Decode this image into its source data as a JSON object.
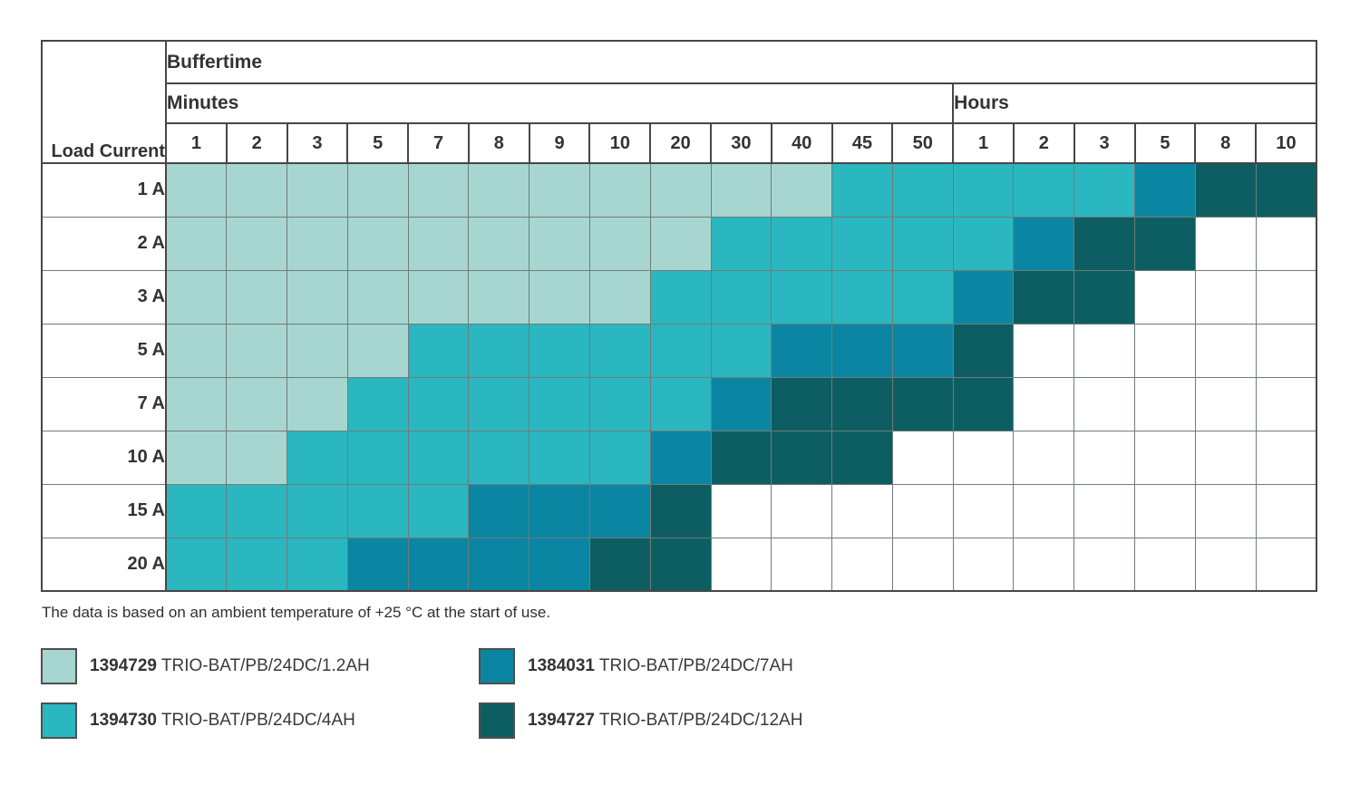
{
  "chart_data": {
    "type": "heatmap",
    "title": "Buffertime",
    "row_label_header": "Load Current",
    "col_groups": [
      {
        "label": "Minutes",
        "cols": 13
      },
      {
        "label": "Hours",
        "cols": 6
      }
    ],
    "columns": [
      "1",
      "2",
      "3",
      "5",
      "7",
      "8",
      "9",
      "10",
      "20",
      "30",
      "40",
      "45",
      "50",
      "1",
      "2",
      "3",
      "5",
      "8",
      "10"
    ],
    "rows": [
      "1 A",
      "2 A",
      "3 A",
      "5 A",
      "7 A",
      "10 A",
      "15 A",
      "20 A"
    ],
    "legend": [
      {
        "key": "L",
        "code": "1394729",
        "name": "TRIO-BAT/PB/24DC/1.2AH",
        "color": "#a7d6d1"
      },
      {
        "key": "B",
        "code": "1384031",
        "name": "TRIO-BAT/PB/24DC/7AH",
        "color": "#0b86a2"
      },
      {
        "key": "M",
        "code": "1394730",
        "name": "TRIO-BAT/PB/24DC/4AH",
        "color": "#2ab7bf"
      },
      {
        "key": "D",
        "code": "1394727",
        "name": "TRIO-BAT/PB/24DC/12AH",
        "color": "#0d5e62"
      }
    ],
    "cells": [
      [
        "L",
        "L",
        "L",
        "L",
        "L",
        "L",
        "L",
        "L",
        "L",
        "L",
        "L",
        "M",
        "M",
        "M",
        "M",
        "M",
        "B",
        "D",
        "D"
      ],
      [
        "L",
        "L",
        "L",
        "L",
        "L",
        "L",
        "L",
        "L",
        "L",
        "M",
        "M",
        "M",
        "M",
        "M",
        "B",
        "D",
        "D",
        "",
        ""
      ],
      [
        "L",
        "L",
        "L",
        "L",
        "L",
        "L",
        "L",
        "L",
        "M",
        "M",
        "M",
        "M",
        "M",
        "B",
        "D",
        "D",
        "",
        "",
        ""
      ],
      [
        "L",
        "L",
        "L",
        "L",
        "M",
        "M",
        "M",
        "M",
        "M",
        "M",
        "B",
        "B",
        "B",
        "D",
        "",
        "",
        "",
        "",
        ""
      ],
      [
        "L",
        "L",
        "L",
        "M",
        "M",
        "M",
        "M",
        "M",
        "M",
        "B",
        "D",
        "D",
        "D",
        "D",
        "",
        "",
        "",
        "",
        ""
      ],
      [
        "L",
        "L",
        "M",
        "M",
        "M",
        "M",
        "M",
        "M",
        "B",
        "D",
        "D",
        "D",
        "",
        "",
        "",
        "",
        "",
        "",
        ""
      ],
      [
        "M",
        "M",
        "M",
        "M",
        "M",
        "B",
        "B",
        "B",
        "D",
        "",
        "",
        "",
        "",
        "",
        "",
        "",
        "",
        "",
        ""
      ],
      [
        "M",
        "M",
        "M",
        "B",
        "B",
        "B",
        "B",
        "D",
        "D",
        "",
        "",
        "",
        "",
        "",
        "",
        "",
        "",
        "",
        ""
      ]
    ],
    "footnote": "The data is based on an ambient temperature of +25 °C at the start of use.",
    "grid_line_color": "#717b7b",
    "frame_color": "#474747"
  }
}
